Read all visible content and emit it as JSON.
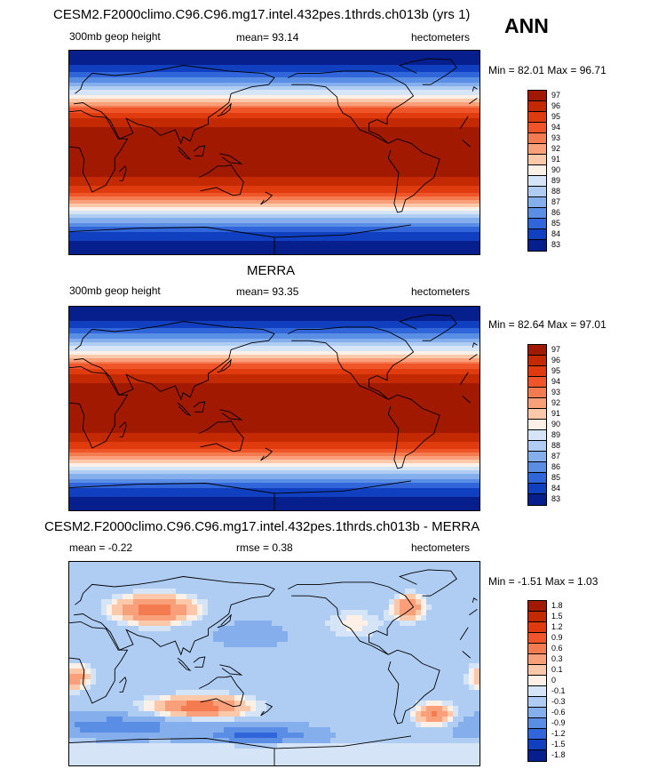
{
  "season": "ANN",
  "chart_data": [
    {
      "type": "heatmap",
      "title": "CESM2.F2000climo.C96.C96.mg17.intel.432pes.1thrds.ch013b (yrs 1)",
      "left_label": "300mb geop height",
      "center_label": "mean=  93.14",
      "right_label": "hectometers",
      "range_label": "Min =  82.01 Max =  96.71",
      "levels": [
        "97",
        "96",
        "95",
        "94",
        "93",
        "92",
        "91",
        "90",
        "89",
        "88",
        "87",
        "86",
        "85",
        "84",
        "83"
      ],
      "colors": [
        "#a11a00",
        "#c42a02",
        "#df3b0f",
        "#ef5528",
        "#f47a4f",
        "#f9a07a",
        "#fcc8aa",
        "#fdf0e6",
        "#d6e4f7",
        "#afcdf2",
        "#84aeec",
        "#5a8de4",
        "#3066d9",
        "#1040bf",
        "#061f8c"
      ],
      "pattern": "zonal",
      "min": 82.01,
      "max": 96.71,
      "mean": 93.14
    },
    {
      "type": "heatmap",
      "title": "MERRA",
      "left_label": "300mb geop height",
      "center_label": "mean=  93.35",
      "right_label": "hectometers",
      "range_label": "Min =  82.64 Max =  97.01",
      "levels": [
        "97",
        "96",
        "95",
        "94",
        "93",
        "92",
        "91",
        "90",
        "89",
        "88",
        "87",
        "86",
        "85",
        "84",
        "83"
      ],
      "colors": [
        "#a11a00",
        "#c42a02",
        "#df3b0f",
        "#ef5528",
        "#f47a4f",
        "#f9a07a",
        "#fcc8aa",
        "#fdf0e6",
        "#d6e4f7",
        "#afcdf2",
        "#84aeec",
        "#5a8de4",
        "#3066d9",
        "#1040bf",
        "#061f8c"
      ],
      "pattern": "zonal",
      "min": 82.64,
      "max": 97.01,
      "mean": 93.35
    },
    {
      "type": "heatmap",
      "title": "CESM2.F2000climo.C96.C96.mg17.intel.432pes.1thrds.ch013b - MERRA",
      "left_label": "mean =  -0.22",
      "center_label": "rmse =   0.38",
      "right_label": "hectometers",
      "range_label": "Min =  -1.51 Max =   1.03",
      "levels": [
        "1.8",
        "1.5",
        "1.2",
        "0.9",
        "0.6",
        "0.3",
        "0.1",
        "0",
        "-0.1",
        "-0.3",
        "-0.6",
        "-0.9",
        "-1.2",
        "-1.5",
        "-1.8"
      ],
      "colors": [
        "#a11a00",
        "#c42a02",
        "#df3b0f",
        "#ef5528",
        "#f47a4f",
        "#f9a07a",
        "#fcc8aa",
        "#fdf0e6",
        "#d6e4f7",
        "#afcdf2",
        "#84aeec",
        "#5a8de4",
        "#3066d9",
        "#1040bf",
        "#061f8c"
      ],
      "pattern": "diff",
      "min": -1.51,
      "max": 1.03,
      "mean": -0.22,
      "rmse": 0.38
    }
  ]
}
